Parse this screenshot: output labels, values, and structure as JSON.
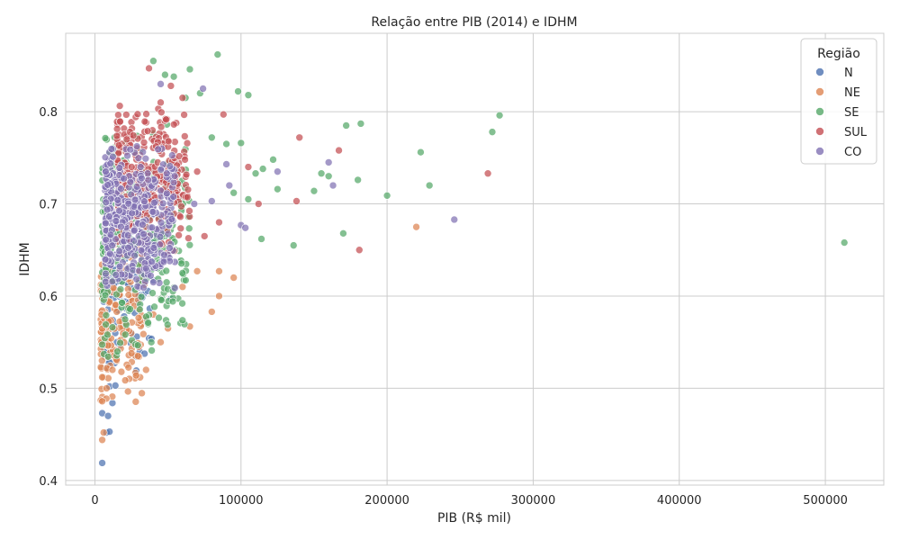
{
  "chart_data": {
    "type": "scatter",
    "title": "Relação entre PIB (2014) e IDHM",
    "xlabel": "PIB (R$ mil)",
    "ylabel": "IDHM",
    "xlim": [
      -20000,
      540000
    ],
    "ylim": [
      0.395,
      0.885
    ],
    "x_ticks": [
      0,
      100000,
      200000,
      300000,
      400000,
      500000
    ],
    "y_ticks": [
      0.4,
      0.5,
      0.6,
      0.7,
      0.8
    ],
    "grid": true,
    "legend": {
      "title": "Região",
      "placement": "top-right"
    },
    "series": [
      {
        "name": "N",
        "color": "#4c72b0",
        "points": [
          [
            5000,
            0.419
          ],
          [
            5000,
            0.473
          ],
          [
            8000,
            0.452
          ],
          [
            10000,
            0.453
          ],
          [
            9000,
            0.47
          ],
          [
            12000,
            0.484
          ],
          [
            10000,
            0.502
          ],
          [
            14000,
            0.503
          ],
          [
            8000,
            0.522
          ],
          [
            15000,
            0.55
          ],
          [
            20000,
            0.578
          ],
          [
            25000,
            0.56
          ],
          [
            30000,
            0.6
          ],
          [
            52000,
            0.597
          ],
          [
            40000,
            0.617
          ],
          [
            28000,
            0.625
          ],
          [
            35000,
            0.64
          ],
          [
            20000,
            0.655
          ],
          [
            45000,
            0.66
          ]
        ],
        "cluster": {
          "n": 130,
          "x": [
            6000,
            40000
          ],
          "y": [
            0.5,
            0.74
          ]
        }
      },
      {
        "name": "NE",
        "color": "#dd8452",
        "points": [
          [
            5000,
            0.444
          ],
          [
            6000,
            0.452
          ],
          [
            5000,
            0.486
          ],
          [
            8000,
            0.5
          ],
          [
            12000,
            0.52
          ],
          [
            35000,
            0.52
          ],
          [
            45000,
            0.55
          ],
          [
            50000,
            0.565
          ],
          [
            65000,
            0.567
          ],
          [
            80000,
            0.583
          ],
          [
            85000,
            0.6
          ],
          [
            95000,
            0.62
          ],
          [
            85000,
            0.627
          ],
          [
            70000,
            0.627
          ],
          [
            60000,
            0.61
          ],
          [
            40000,
            0.58
          ],
          [
            220000,
            0.675
          ],
          [
            30000,
            0.545
          ],
          [
            25000,
            0.538
          ]
        ],
        "cluster": {
          "n": 170,
          "x": [
            4000,
            35000
          ],
          "y": [
            0.48,
            0.66
          ]
        }
      },
      {
        "name": "SE",
        "color": "#55a868",
        "points": [
          [
            513000,
            0.658
          ],
          [
            277000,
            0.796
          ],
          [
            272000,
            0.778
          ],
          [
            229000,
            0.72
          ],
          [
            223000,
            0.756
          ],
          [
            200000,
            0.709
          ],
          [
            182000,
            0.787
          ],
          [
            180000,
            0.726
          ],
          [
            172000,
            0.785
          ],
          [
            170000,
            0.668
          ],
          [
            160000,
            0.73
          ],
          [
            155000,
            0.733
          ],
          [
            150000,
            0.714
          ],
          [
            136000,
            0.655
          ],
          [
            125000,
            0.716
          ],
          [
            122000,
            0.748
          ],
          [
            114000,
            0.662
          ],
          [
            105000,
            0.818
          ],
          [
            98000,
            0.822
          ],
          [
            84000,
            0.862
          ],
          [
            65000,
            0.846
          ],
          [
            40000,
            0.855
          ],
          [
            48000,
            0.84
          ],
          [
            54000,
            0.838
          ],
          [
            62000,
            0.815
          ],
          [
            72000,
            0.82
          ],
          [
            100000,
            0.766
          ],
          [
            115000,
            0.738
          ],
          [
            90000,
            0.765
          ],
          [
            95000,
            0.712
          ],
          [
            80000,
            0.772
          ],
          [
            110000,
            0.733
          ],
          [
            60000,
            0.625
          ],
          [
            55000,
            0.65
          ],
          [
            105000,
            0.705
          ]
        ],
        "cluster": {
          "n": 280,
          "x": [
            5000,
            65000
          ],
          "y": [
            0.52,
            0.8
          ]
        }
      },
      {
        "name": "SUL",
        "color": "#c44e52",
        "points": [
          [
            37000,
            0.847
          ],
          [
            52000,
            0.828
          ],
          [
            88000,
            0.797
          ],
          [
            105000,
            0.74
          ],
          [
            112000,
            0.7
          ],
          [
            140000,
            0.772
          ],
          [
            138000,
            0.703
          ],
          [
            167000,
            0.758
          ],
          [
            181000,
            0.65
          ],
          [
            269000,
            0.733
          ],
          [
            85000,
            0.68
          ],
          [
            75000,
            0.665
          ],
          [
            60000,
            0.815
          ],
          [
            45000,
            0.81
          ],
          [
            70000,
            0.735
          ]
        ],
        "cluster": {
          "n": 320,
          "x": [
            15000,
            65000
          ],
          "y": [
            0.64,
            0.81
          ]
        }
      },
      {
        "name": "CO",
        "color": "#8172b3",
        "points": [
          [
            74000,
            0.825
          ],
          [
            45000,
            0.83
          ],
          [
            125000,
            0.735
          ],
          [
            160000,
            0.745
          ],
          [
            163000,
            0.72
          ],
          [
            246000,
            0.683
          ],
          [
            100000,
            0.677
          ],
          [
            103000,
            0.674
          ],
          [
            92000,
            0.72
          ],
          [
            90000,
            0.743
          ],
          [
            40000,
            0.615
          ],
          [
            35000,
            0.63
          ],
          [
            68000,
            0.7
          ],
          [
            80000,
            0.703
          ]
        ],
        "cluster": {
          "n": 420,
          "x": [
            7000,
            55000
          ],
          "y": [
            0.6,
            0.77
          ]
        }
      }
    ]
  }
}
